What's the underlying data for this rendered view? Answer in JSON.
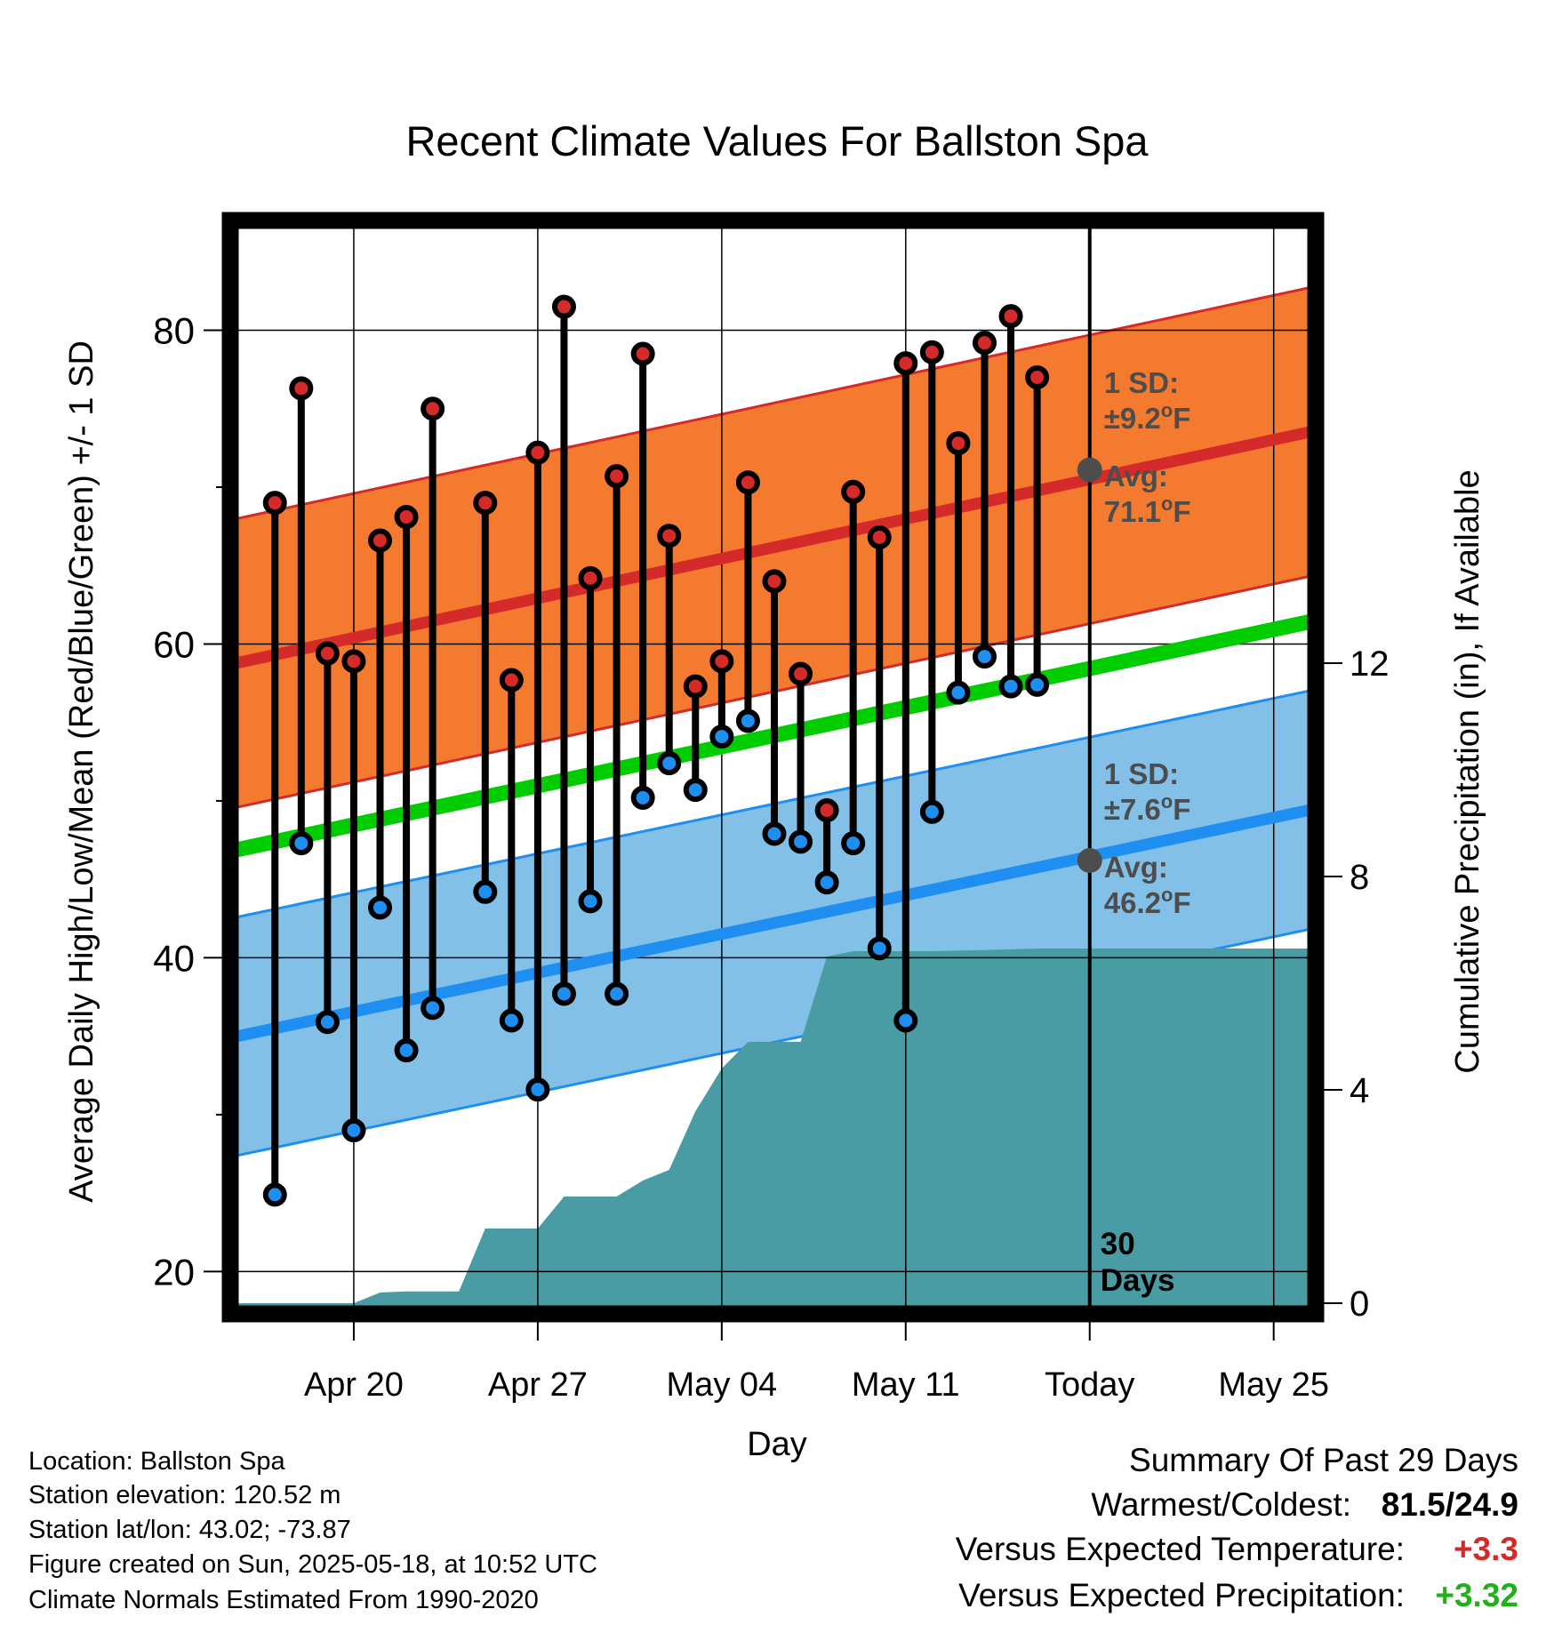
{
  "chart_data": {
    "type": "line",
    "title": "Recent Climate Values For Ballston Spa",
    "xlabel": "Day",
    "ylabel": "Average Daily High/Low/Mean (Red/Blue/Green) +/- 1 SD",
    "y2label": "Cumulative Precipitation (in), If Available",
    "ylim": [
      17.3,
      87
    ],
    "y2lim": [
      -0.2,
      20.3
    ],
    "xlim": [
      15.3,
      56.6
    ],
    "x_ticks": [
      {
        "x": 20,
        "label": "Apr 20"
      },
      {
        "x": 27,
        "label": "Apr 27"
      },
      {
        "x": 34,
        "label": "May 04"
      },
      {
        "x": 41,
        "label": "May 11"
      },
      {
        "x": 48,
        "label": "Today"
      },
      {
        "x": 55,
        "label": "May 25"
      }
    ],
    "y_ticks": [
      20,
      40,
      60,
      80
    ],
    "y2_ticks": [
      0,
      4,
      8,
      12
    ],
    "grid": true,
    "today_x": 48,
    "today_label_line1": "30",
    "today_label_line2": "Days",
    "x_days": [
      17,
      18,
      19,
      20,
      21,
      22,
      23,
      24,
      25,
      26,
      27,
      28,
      29,
      30,
      31,
      32,
      33,
      34,
      35,
      36,
      37,
      38,
      39,
      40,
      41,
      42,
      43,
      44,
      45,
      46,
      47
    ],
    "highs": [
      69.0,
      76.3,
      59.4,
      58.9,
      66.6,
      68.1,
      75.0,
      null,
      69.0,
      57.7,
      72.2,
      81.5,
      64.2,
      70.7,
      78.5,
      66.9,
      57.3,
      58.9,
      70.3,
      64.0,
      58.1,
      49.4,
      69.7,
      66.8,
      77.9,
      78.6,
      72.8,
      79.2,
      80.9,
      77.0,
      null
    ],
    "lows": [
      24.9,
      47.3,
      35.9,
      29.0,
      43.2,
      34.1,
      36.8,
      null,
      44.2,
      36.0,
      31.6,
      37.7,
      43.6,
      37.7,
      50.2,
      52.4,
      50.7,
      54.1,
      55.1,
      47.9,
      47.4,
      44.8,
      47.3,
      40.6,
      36.0,
      49.3,
      56.9,
      59.2,
      57.3,
      57.4,
      null
    ],
    "normal_high": {
      "start": 58.7,
      "end": 73.6,
      "sd": 9.2
    },
    "normal_low": {
      "start": 34.9,
      "end": 49.5,
      "sd": 7.6
    },
    "normal_mean": {
      "start": 46.8,
      "end": 61.5
    },
    "precip_cumulative": [
      {
        "x": 15.3,
        "y": 0.0
      },
      {
        "x": 20,
        "y": 0.0
      },
      {
        "x": 21,
        "y": 0.2
      },
      {
        "x": 22,
        "y": 0.22
      },
      {
        "x": 23,
        "y": 0.22
      },
      {
        "x": 24,
        "y": 0.22
      },
      {
        "x": 25,
        "y": 1.4
      },
      {
        "x": 26,
        "y": 1.4
      },
      {
        "x": 27,
        "y": 1.4
      },
      {
        "x": 28,
        "y": 2.0
      },
      {
        "x": 29,
        "y": 2.0
      },
      {
        "x": 30,
        "y": 2.0
      },
      {
        "x": 31,
        "y": 2.3
      },
      {
        "x": 32,
        "y": 2.5
      },
      {
        "x": 33,
        "y": 3.6
      },
      {
        "x": 34,
        "y": 4.4
      },
      {
        "x": 35,
        "y": 4.9
      },
      {
        "x": 36,
        "y": 4.9
      },
      {
        "x": 37,
        "y": 4.9
      },
      {
        "x": 38,
        "y": 6.5
      },
      {
        "x": 39,
        "y": 6.6
      },
      {
        "x": 40,
        "y": 6.6
      },
      {
        "x": 42,
        "y": 6.6
      },
      {
        "x": 44,
        "y": 6.62
      },
      {
        "x": 46,
        "y": 6.65
      },
      {
        "x": 48,
        "y": 6.65
      },
      {
        "x": 56.6,
        "y": 6.65
      }
    ],
    "annotations": {
      "high_sd_label": "1 SD:",
      "high_sd_value": "±9.2",
      "high_avg_label": "Avg:",
      "high_avg_value": "71.1",
      "low_sd_label": "1 SD:",
      "low_sd_value": "±7.6",
      "low_avg_label": "Avg:",
      "low_avg_value": "46.2",
      "degree": "o",
      "unit": "F",
      "high_avg": 71.1,
      "low_avg": 46.2
    },
    "colors": {
      "high_band": "#f47a30",
      "high_line": "#d42a2a",
      "low_band": "#82c0e8",
      "low_line": "#1e8ef0",
      "mean_line": "#00cc00",
      "precip": "#4a9ca4",
      "high_dot": "#d42a2a",
      "low_dot": "#1e8ef0",
      "annotation": "#4d4d4d"
    }
  },
  "info": {
    "location": "Location: Ballston Spa",
    "elevation": "Station elevation: 120.52 m",
    "latlon": "Station lat/lon: 43.02; -73.87",
    "created": "Figure created on Sun, 2025-05-18, at 10:52 UTC",
    "normals": "Climate Normals Estimated From 1990-2020"
  },
  "summary": {
    "title": "Summary Of Past 29 Days",
    "warmest_label": "Warmest/Coldest:",
    "warmest_value": "81.5/24.9",
    "temp_label": "Versus Expected Temperature:",
    "temp_value": "+3.3",
    "temp_color": "#d42a2a",
    "precip_label": "Versus Expected Precipitation:",
    "precip_value": "+3.32",
    "precip_color": "#22b01a"
  }
}
